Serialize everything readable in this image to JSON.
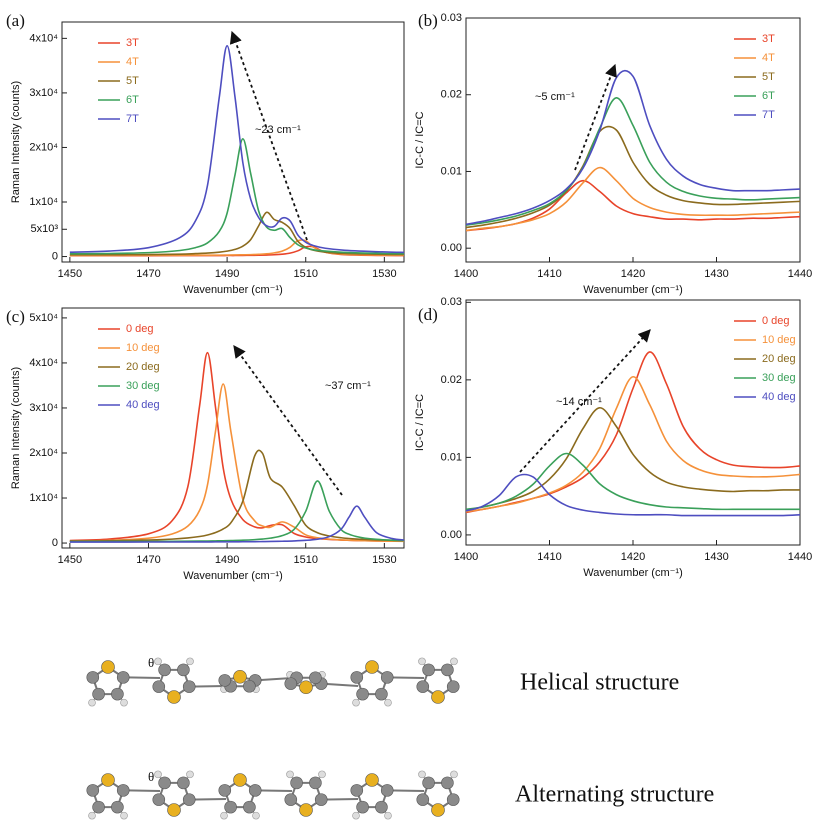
{
  "chart_data": [
    {
      "type": "line",
      "label": "(a)",
      "xlabel": "Wavenumber (cm⁻¹)",
      "ylabel": "Raman Intensity (counts)",
      "annotation": "~23 cm⁻¹",
      "legend": "upper left",
      "xlim": [
        1448,
        1535
      ],
      "xticks": [
        1450,
        1470,
        1490,
        1510,
        1530
      ],
      "ylim": [
        -1000,
        43000
      ],
      "yticks": [
        0,
        {
          "value": 5000,
          "label": "5x10³"
        },
        {
          "value": 10000,
          "label": "1x10⁴"
        },
        {
          "value": 20000,
          "label": "2x10⁴"
        },
        {
          "value": 30000,
          "label": "3x10⁴"
        },
        {
          "value": 40000,
          "label": "4x10⁴"
        }
      ],
      "x": [
        1450,
        1460,
        1470,
        1478,
        1482,
        1485,
        1488,
        1490,
        1492,
        1494,
        1496,
        1498,
        1500,
        1502,
        1504,
        1506,
        1508,
        1510,
        1512,
        1515,
        1520,
        1530,
        1535
      ],
      "series": [
        {
          "name": "3T",
          "color": "#e8442a",
          "values": [
            150,
            160,
            160,
            170,
            170,
            170,
            180,
            190,
            190,
            210,
            220,
            240,
            280,
            330,
            430,
            630,
            1050,
            1770,
            1770,
            800,
            330,
            190,
            180
          ]
        },
        {
          "name": "4T",
          "color": "#f5913a",
          "values": [
            210,
            210,
            220,
            230,
            240,
            250,
            260,
            270,
            290,
            320,
            350,
            410,
            500,
            670,
            990,
            1700,
            2900,
            2900,
            1700,
            800,
            410,
            260,
            240
          ]
        },
        {
          "name": "5T",
          "color": "#8b6b1e",
          "values": [
            330,
            340,
            370,
            430,
            540,
            630,
            800,
            990,
            1310,
            1900,
            3110,
            5600,
            8100,
            6790,
            6270,
            5150,
            2800,
            1680,
            1160,
            800,
            560,
            410,
            370
          ]
        },
        {
          "name": "6T",
          "color": "#3aa05a",
          "values": [
            500,
            560,
            720,
            1110,
            1640,
            2500,
            4600,
            7960,
            14940,
            21580,
            15210,
            8400,
            5440,
            4820,
            5140,
            3470,
            2160,
            1560,
            1240,
            1000,
            750,
            560,
            530
          ]
        },
        {
          "name": "7T",
          "color": "#4e4ec0",
          "values": [
            790,
            1010,
            1630,
            3480,
            6610,
            13000,
            29150,
            38640,
            29300,
            17230,
            10500,
            7180,
            5650,
            5530,
            7050,
            6550,
            3940,
            2630,
            2000,
            1520,
            1150,
            840,
            760
          ]
        }
      ]
    },
    {
      "type": "line",
      "label": "(b)",
      "xlabel": "Wavenumber (cm⁻¹)",
      "ylabel": "IC-C / IC=C",
      "annotation": "~5 cm⁻¹",
      "legend": "upper right",
      "xlim": [
        1400,
        1440
      ],
      "xticks": [
        1400,
        1410,
        1420,
        1430,
        1440
      ],
      "ylim": [
        -0.0018,
        0.03
      ],
      "yticks": [
        {
          "value": 0,
          "label": "0.00"
        },
        0.01,
        0.02,
        0.03
      ],
      "x": [
        1400,
        1402,
        1404,
        1406,
        1408,
        1410,
        1412,
        1414,
        1416,
        1418,
        1420,
        1422,
        1424,
        1426,
        1428,
        1430,
        1432,
        1434,
        1436,
        1438,
        1440
      ],
      "series": [
        {
          "name": "3T",
          "color": "#e8442a",
          "values": [
            0.0023,
            0.0025,
            0.0028,
            0.0032,
            0.0039,
            0.0051,
            0.0072,
            0.0088,
            0.0074,
            0.0055,
            0.0045,
            0.0041,
            0.0038,
            0.0038,
            0.0037,
            0.0038,
            0.0038,
            0.0039,
            0.0039,
            0.004,
            0.0041
          ]
        },
        {
          "name": "4T",
          "color": "#f5913a",
          "values": [
            0.0023,
            0.0026,
            0.0028,
            0.0032,
            0.0037,
            0.0045,
            0.006,
            0.0085,
            0.0105,
            0.0088,
            0.0065,
            0.0053,
            0.0047,
            0.0044,
            0.0043,
            0.0043,
            0.0043,
            0.0044,
            0.0045,
            0.0046,
            0.0047
          ]
        },
        {
          "name": "5T",
          "color": "#8b6b1e",
          "values": [
            0.0027,
            0.003,
            0.0034,
            0.0039,
            0.0046,
            0.0056,
            0.0074,
            0.0107,
            0.0152,
            0.0154,
            0.0112,
            0.0083,
            0.0069,
            0.0062,
            0.0059,
            0.0057,
            0.0057,
            0.0058,
            0.0059,
            0.006,
            0.0061
          ]
        },
        {
          "name": "6T",
          "color": "#3aa05a",
          "values": [
            0.003,
            0.0033,
            0.0037,
            0.0042,
            0.0049,
            0.0058,
            0.0075,
            0.0105,
            0.0156,
            0.0196,
            0.016,
            0.0112,
            0.0086,
            0.0074,
            0.0068,
            0.0065,
            0.0064,
            0.0063,
            0.0064,
            0.0065,
            0.0066
          ]
        },
        {
          "name": "7T",
          "color": "#4e4ec0",
          "values": [
            0.0031,
            0.0035,
            0.004,
            0.0045,
            0.0052,
            0.0062,
            0.0077,
            0.0104,
            0.0153,
            0.0222,
            0.0224,
            0.016,
            0.0116,
            0.0094,
            0.0083,
            0.0078,
            0.0075,
            0.0075,
            0.0075,
            0.0076,
            0.0077
          ]
        }
      ]
    },
    {
      "type": "line",
      "label": "(c)",
      "xlabel": "Wavenumber (cm⁻¹)",
      "ylabel": "Raman Intensity (counts)",
      "annotation": "~37 cm⁻¹",
      "legend": "upper left",
      "xlim": [
        1448,
        1535
      ],
      "xticks": [
        1450,
        1470,
        1490,
        1510,
        1530
      ],
      "ylim": [
        -1100,
        52200
      ],
      "yticks": [
        0,
        {
          "value": 10000,
          "label": "1x10⁴"
        },
        {
          "value": 20000,
          "label": "2x10⁴"
        },
        {
          "value": 30000,
          "label": "3x10⁴"
        },
        {
          "value": 40000,
          "label": "4x10⁴"
        },
        {
          "value": 50000,
          "label": "5x10⁴"
        }
      ],
      "x": [
        1450,
        1460,
        1470,
        1476,
        1480,
        1483,
        1485,
        1487,
        1489,
        1491,
        1494,
        1497,
        1499,
        1501,
        1504,
        1507,
        1510,
        1513,
        1516,
        1519,
        1521,
        1523,
        1525,
        1528,
        1532,
        1535
      ],
      "series": [
        {
          "name": "0 deg",
          "color": "#e8442a",
          "values": [
            560,
            890,
            2050,
            4950,
            12460,
            30470,
            42280,
            30500,
            16720,
            9670,
            5210,
            3590,
            3370,
            3900,
            4060,
            2150,
            1340,
            990,
            800,
            670,
            610,
            560,
            520,
            470,
            430,
            400
          ]
        },
        {
          "name": "10 deg",
          "color": "#f5913a",
          "values": [
            420,
            580,
            1080,
            2010,
            3750,
            7260,
            12870,
            24540,
            35320,
            24590,
            9700,
            4950,
            3790,
            3520,
            4700,
            3570,
            1830,
            1170,
            870,
            700,
            620,
            570,
            520,
            470,
            410,
            390
          ]
        },
        {
          "name": "20 deg",
          "color": "#8b6b1e",
          "values": [
            430,
            500,
            660,
            870,
            1130,
            1450,
            1790,
            2310,
            3130,
            4550,
            9310,
            19320,
            19930,
            14420,
            12450,
            8400,
            3950,
            2290,
            1570,
            1180,
            1010,
            890,
            800,
            700,
            600,
            550
          ]
        },
        {
          "name": "30 deg",
          "color": "#3aa05a",
          "values": [
            330,
            340,
            370,
            390,
            410,
            430,
            450,
            480,
            510,
            550,
            630,
            760,
            890,
            1090,
            1650,
            3000,
            7050,
            13800,
            7050,
            3000,
            1970,
            1420,
            1090,
            820,
            630,
            550
          ]
        },
        {
          "name": "40 deg",
          "color": "#4e4ec0",
          "values": [
            210,
            220,
            230,
            230,
            240,
            250,
            250,
            260,
            260,
            270,
            290,
            310,
            320,
            350,
            400,
            470,
            600,
            860,
            1440,
            3080,
            5740,
            8200,
            5740,
            2320,
            1000,
            700
          ]
        }
      ]
    },
    {
      "type": "line",
      "label": "(d)",
      "xlabel": "Wavenumber (cm⁻¹)",
      "ylabel": "IC-C / IC=C",
      "annotation": "~14 cm⁻¹",
      "legend": "upper right",
      "xlim": [
        1400,
        1440
      ],
      "xticks": [
        1400,
        1410,
        1420,
        1430,
        1440
      ],
      "ylim": [
        -0.0013,
        0.0303
      ],
      "yticks": [
        {
          "value": 0,
          "label": "0.00"
        },
        0.01,
        0.02,
        0.03
      ],
      "x": [
        1400,
        1402,
        1404,
        1406,
        1408,
        1410,
        1412,
        1414,
        1416,
        1418,
        1420,
        1422,
        1424,
        1426,
        1428,
        1430,
        1432,
        1434,
        1436,
        1438,
        1440
      ],
      "series": [
        {
          "name": "0 deg",
          "color": "#e8442a",
          "values": [
            0.0029,
            0.0033,
            0.0037,
            0.0042,
            0.0047,
            0.0053,
            0.0062,
            0.0074,
            0.0094,
            0.0129,
            0.0189,
            0.0236,
            0.0195,
            0.014,
            0.0111,
            0.0097,
            0.009,
            0.0088,
            0.0087,
            0.0087,
            0.0089
          ]
        },
        {
          "name": "10 deg",
          "color": "#f5913a",
          "values": [
            0.003,
            0.0033,
            0.0037,
            0.0041,
            0.0047,
            0.0054,
            0.0064,
            0.0081,
            0.0111,
            0.0163,
            0.0204,
            0.0168,
            0.0121,
            0.0096,
            0.0084,
            0.0078,
            0.0076,
            0.0075,
            0.0075,
            0.0076,
            0.0078
          ]
        },
        {
          "name": "20 deg",
          "color": "#8b6b1e",
          "values": [
            0.0032,
            0.0036,
            0.0041,
            0.0047,
            0.0056,
            0.0072,
            0.0098,
            0.0137,
            0.0164,
            0.014,
            0.0104,
            0.0081,
            0.0068,
            0.0062,
            0.0059,
            0.0057,
            0.0056,
            0.0057,
            0.0057,
            0.0058,
            0.0058
          ]
        },
        {
          "name": "30 deg",
          "color": "#3aa05a",
          "values": [
            0.0033,
            0.0036,
            0.0041,
            0.005,
            0.0065,
            0.0089,
            0.0105,
            0.009,
            0.0066,
            0.0052,
            0.0044,
            0.0039,
            0.0036,
            0.0035,
            0.0034,
            0.0033,
            0.0033,
            0.0033,
            0.0033,
            0.0033,
            0.0033
          ]
        },
        {
          "name": "40 deg",
          "color": "#4e4ec0",
          "values": [
            0.0031,
            0.0037,
            0.0051,
            0.0075,
            0.0075,
            0.0052,
            0.0038,
            0.0032,
            0.0029,
            0.0027,
            0.0026,
            0.0026,
            0.0026,
            0.0025,
            0.0025,
            0.0025,
            0.0025,
            0.0025,
            0.0025,
            0.0025,
            0.0026
          ]
        }
      ]
    }
  ],
  "diagram": {
    "rows": [
      {
        "label": "Helical structure",
        "angle": "θ"
      },
      {
        "label": "Alternating structure",
        "angle": "θ"
      }
    ]
  }
}
